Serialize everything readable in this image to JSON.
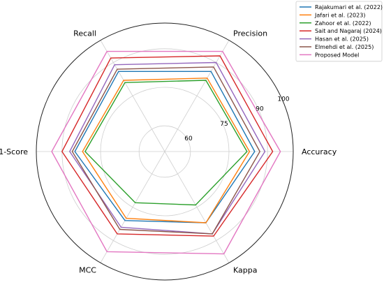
{
  "chart_data": {
    "type": "radar",
    "axes": [
      "Accuracy",
      "Precision",
      "Recall",
      "F1-Score",
      "MCC",
      "Kappa"
    ],
    "radial_range": [
      50,
      100
    ],
    "radial_ticks": [
      {
        "value": 60,
        "label": "60"
      },
      {
        "value": 75,
        "label": "75"
      },
      {
        "value": 90,
        "label": "90"
      },
      {
        "value": 100,
        "label": "100"
      }
    ],
    "grid": true,
    "legend_position": "top-right",
    "series": [
      {
        "name": "Rajakumari et al. (2022)",
        "color": "#1f77b4",
        "values": [
          85,
          86,
          86,
          85,
          81,
          82
        ]
      },
      {
        "name": "Jafari et al. (2023)",
        "color": "#ff7f0e",
        "values": [
          83,
          83,
          82,
          82,
          80,
          82
        ]
      },
      {
        "name": "Zahoor et al. (2022)",
        "color": "#2ca02c",
        "values": [
          82,
          82,
          81,
          81,
          73,
          74
        ]
      },
      {
        "name": "Sait and Nagaraj (2024)",
        "color": "#d62728",
        "values": [
          92,
          93,
          92,
          90,
          87,
          88
        ]
      },
      {
        "name": "Hasan et al. (2025)",
        "color": "#9467bd",
        "values": [
          89,
          90,
          89,
          87,
          84,
          87
        ]
      },
      {
        "name": "Elmehdi et al. (2025)",
        "color": "#8c564b",
        "values": [
          87,
          88,
          87,
          86,
          85,
          87
        ]
      },
      {
        "name": "Proposed Model",
        "color": "#e377c2",
        "values": [
          95,
          95,
          95,
          94,
          95,
          96
        ]
      }
    ]
  }
}
